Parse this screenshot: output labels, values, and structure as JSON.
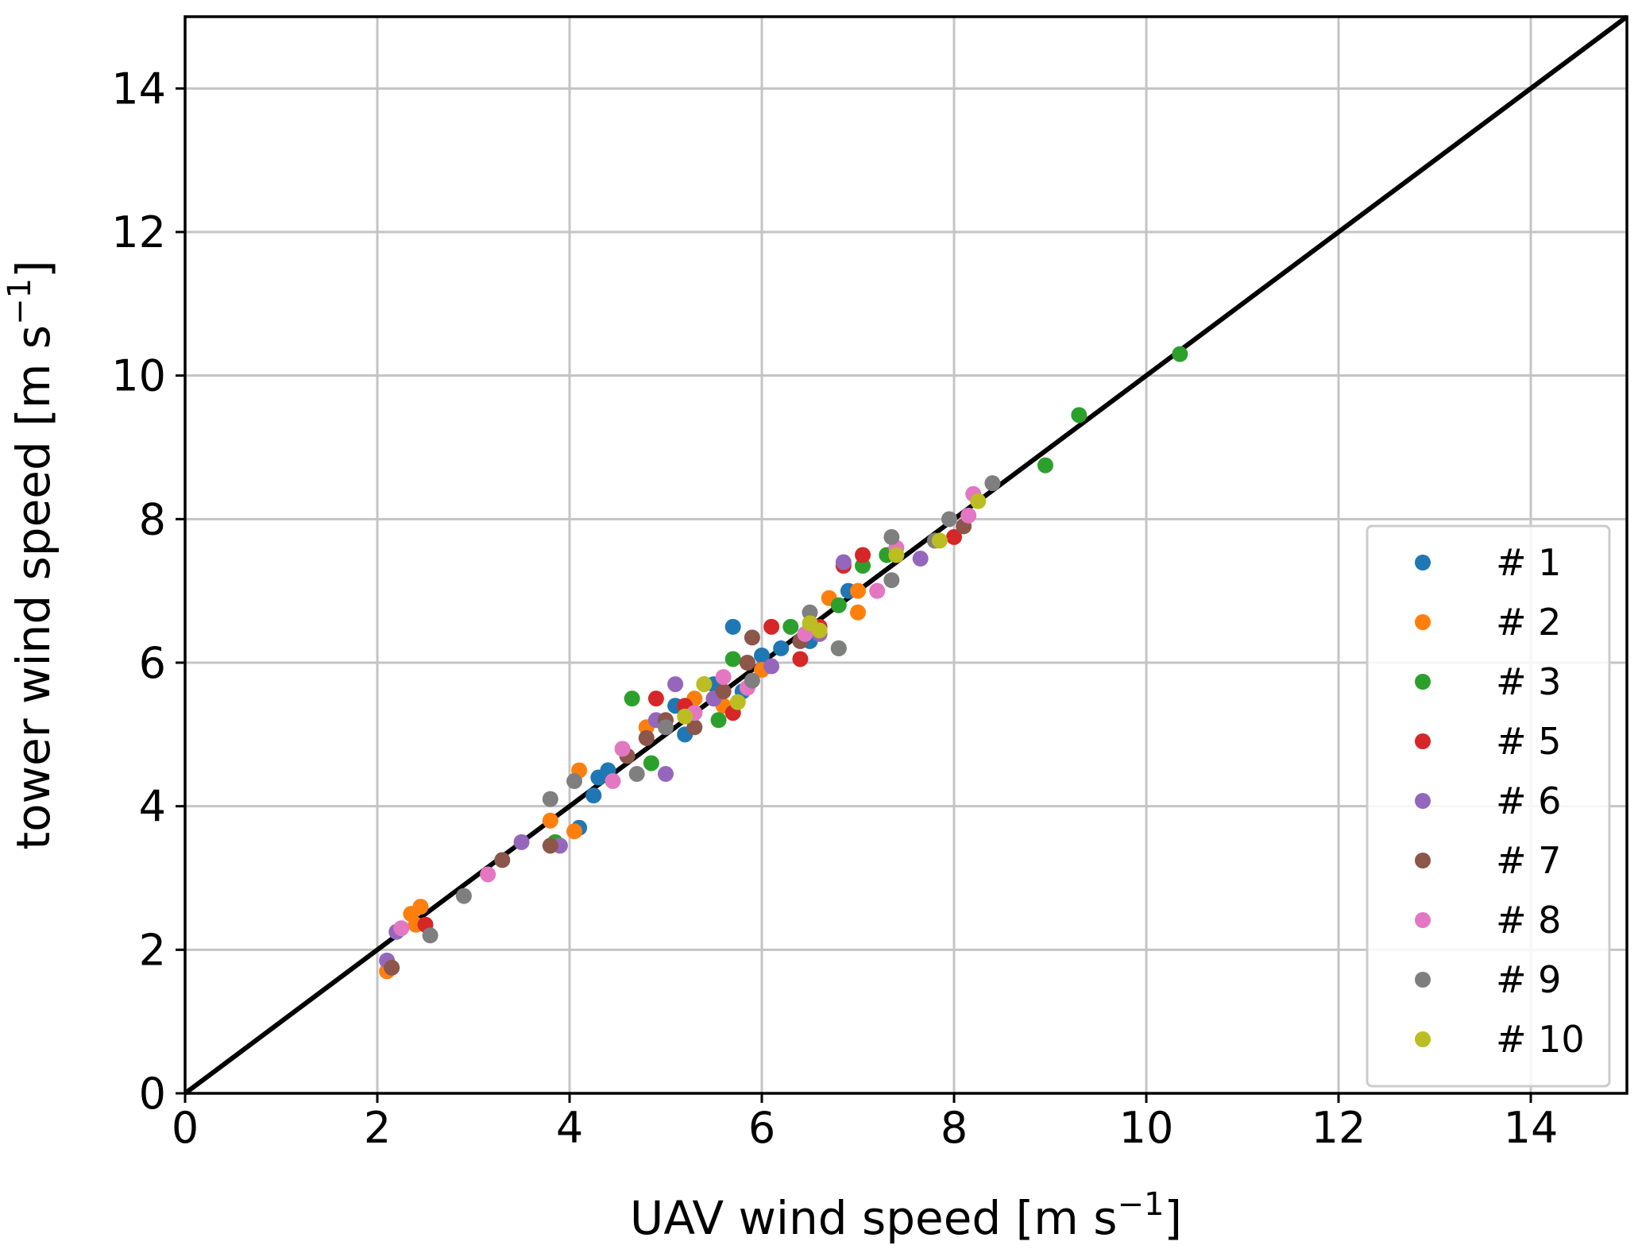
{
  "chart_data": {
    "type": "scatter",
    "xlabel": "UAV wind speed [m s",
    "ylabel": "tower wind speed [m s",
    "unit_exponent": "−1",
    "unit_close": "]",
    "xlim": [
      0,
      15
    ],
    "ylim": [
      0,
      15
    ],
    "xticks": [
      "0",
      "2",
      "4",
      "6",
      "8",
      "10",
      "12",
      "14"
    ],
    "yticks": [
      "0",
      "2",
      "4",
      "6",
      "8",
      "10",
      "12",
      "14"
    ],
    "grid": true,
    "legend_position": "lower-right",
    "reference_line": {
      "x": [
        0,
        15
      ],
      "y": [
        0,
        15
      ],
      "color": "#000000"
    },
    "series": [
      {
        "name": "# 1",
        "color": "#1f77b4",
        "points": [
          [
            5.7,
            6.5
          ],
          [
            4.3,
            4.4
          ],
          [
            4.1,
            3.7
          ],
          [
            5.2,
            5.0
          ],
          [
            5.5,
            5.7
          ],
          [
            6.2,
            6.2
          ],
          [
            6.5,
            6.3
          ],
          [
            6.9,
            7.0
          ],
          [
            4.4,
            4.5
          ],
          [
            5.1,
            5.4
          ],
          [
            5.8,
            5.6
          ],
          [
            6.0,
            6.1
          ],
          [
            4.25,
            4.15
          ]
        ]
      },
      {
        "name": "# 2",
        "color": "#ff7f0e",
        "points": [
          [
            2.1,
            1.7
          ],
          [
            2.35,
            2.5
          ],
          [
            2.45,
            2.6
          ],
          [
            3.8,
            3.8
          ],
          [
            4.05,
            3.65
          ],
          [
            4.1,
            4.5
          ],
          [
            4.8,
            5.1
          ],
          [
            5.6,
            5.4
          ],
          [
            6.0,
            5.9
          ],
          [
            6.7,
            6.9
          ],
          [
            7.0,
            6.7
          ],
          [
            5.3,
            5.5
          ],
          [
            2.4,
            2.35
          ],
          [
            7.0,
            7.0
          ]
        ]
      },
      {
        "name": "# 3",
        "color": "#2ca02c",
        "points": [
          [
            10.35,
            10.3
          ],
          [
            9.3,
            9.45
          ],
          [
            8.95,
            8.75
          ],
          [
            4.65,
            5.5
          ],
          [
            5.7,
            6.05
          ],
          [
            5.55,
            5.2
          ],
          [
            6.3,
            6.5
          ],
          [
            6.8,
            6.8
          ],
          [
            7.05,
            7.35
          ],
          [
            7.3,
            7.5
          ],
          [
            4.85,
            4.6
          ],
          [
            6.8,
            6.2
          ],
          [
            3.85,
            3.5
          ],
          [
            5.3,
            5.3
          ]
        ]
      },
      {
        "name": "# 5",
        "color": "#d62728",
        "points": [
          [
            2.5,
            2.35
          ],
          [
            4.9,
            5.5
          ],
          [
            5.7,
            5.3
          ],
          [
            6.1,
            6.5
          ],
          [
            6.4,
            6.05
          ],
          [
            6.85,
            7.35
          ],
          [
            7.05,
            7.5
          ],
          [
            8.0,
            7.75
          ],
          [
            5.2,
            5.4
          ],
          [
            5.5,
            5.5
          ],
          [
            6.6,
            6.5
          ]
        ]
      },
      {
        "name": "# 6",
        "color": "#9467bd",
        "points": [
          [
            2.1,
            1.85
          ],
          [
            2.2,
            2.25
          ],
          [
            3.5,
            3.5
          ],
          [
            3.9,
            3.45
          ],
          [
            4.9,
            5.2
          ],
          [
            5.1,
            5.7
          ],
          [
            5.0,
            4.45
          ],
          [
            6.1,
            5.95
          ],
          [
            6.6,
            6.4
          ],
          [
            6.85,
            7.4
          ],
          [
            7.65,
            7.45
          ],
          [
            5.5,
            5.5
          ]
        ]
      },
      {
        "name": "# 7",
        "color": "#8c564b",
        "points": [
          [
            2.15,
            1.75
          ],
          [
            3.3,
            3.25
          ],
          [
            3.8,
            3.45
          ],
          [
            4.8,
            4.95
          ],
          [
            5.0,
            5.2
          ],
          [
            5.3,
            5.1
          ],
          [
            5.9,
            6.35
          ],
          [
            5.85,
            6.0
          ],
          [
            6.4,
            6.3
          ],
          [
            8.1,
            7.9
          ],
          [
            4.6,
            4.7
          ],
          [
            5.6,
            5.6
          ]
        ]
      },
      {
        "name": "# 8",
        "color": "#e377c2",
        "points": [
          [
            2.25,
            2.3
          ],
          [
            3.15,
            3.05
          ],
          [
            4.45,
            4.35
          ],
          [
            4.55,
            4.8
          ],
          [
            5.3,
            5.3
          ],
          [
            5.6,
            5.8
          ],
          [
            5.85,
            5.65
          ],
          [
            6.45,
            6.4
          ],
          [
            7.2,
            7.0
          ],
          [
            7.4,
            7.6
          ],
          [
            8.2,
            8.35
          ],
          [
            8.15,
            8.05
          ]
        ]
      },
      {
        "name": "# 9",
        "color": "#7f7f7f",
        "points": [
          [
            2.55,
            2.2
          ],
          [
            2.9,
            2.75
          ],
          [
            3.8,
            4.1
          ],
          [
            4.05,
            4.35
          ],
          [
            4.7,
            4.45
          ],
          [
            5.0,
            5.1
          ],
          [
            5.4,
            5.7
          ],
          [
            5.9,
            5.75
          ],
          [
            6.5,
            6.7
          ],
          [
            6.8,
            6.2
          ],
          [
            7.35,
            7.15
          ],
          [
            7.35,
            7.75
          ],
          [
            7.95,
            8.0
          ],
          [
            8.4,
            8.5
          ],
          [
            7.8,
            7.7
          ]
        ]
      },
      {
        "name": "# 10",
        "color": "#bcbd22",
        "points": [
          [
            5.4,
            5.7
          ],
          [
            5.75,
            5.45
          ],
          [
            6.5,
            6.55
          ],
          [
            6.6,
            6.45
          ],
          [
            7.4,
            7.5
          ],
          [
            7.85,
            7.7
          ],
          [
            8.25,
            8.25
          ],
          [
            5.2,
            5.25
          ]
        ]
      }
    ]
  }
}
